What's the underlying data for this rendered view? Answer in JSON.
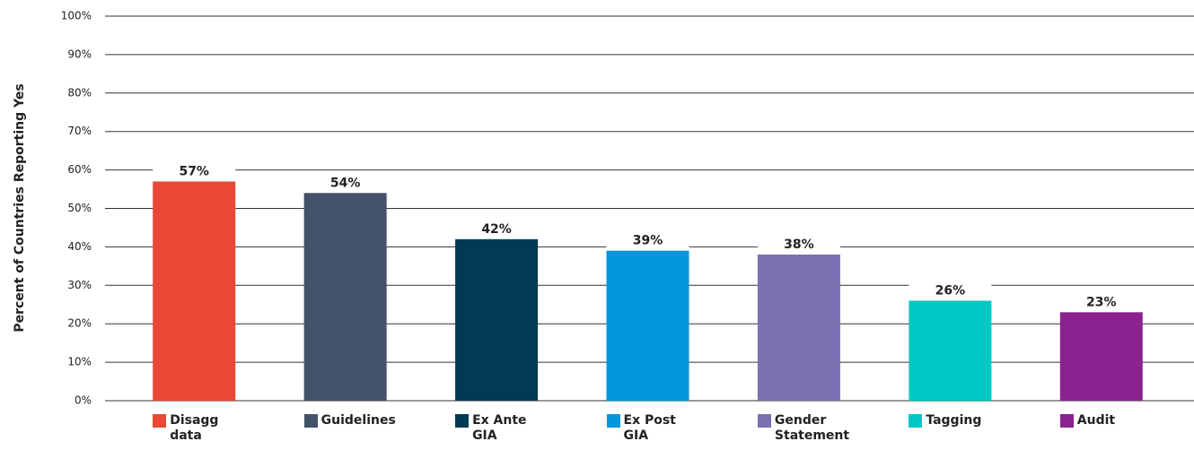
{
  "chart_data": {
    "type": "bar",
    "y_label": "Percent of Countries Reporting Yes",
    "categories": [
      "Disagg data",
      "Guidelines",
      "Ex Ante GIA",
      "Ex Post GIA",
      "Gender Statement",
      "Tagging",
      "Audit"
    ],
    "values": [
      57,
      54,
      42,
      39,
      38,
      26,
      23
    ],
    "value_labels": [
      "57%",
      "54%",
      "42%",
      "39%",
      "38%",
      "26%",
      "23%"
    ],
    "colors": [
      "#e84834",
      "#435268",
      "#013a54",
      "#0098da",
      "#7a70b2",
      "#00c7c6",
      "#8a2290"
    ],
    "ylim": [
      0,
      100
    ],
    "yticks": [
      {
        "value": 0,
        "label": "0%"
      },
      {
        "value": 10,
        "label": "10%"
      },
      {
        "value": 20,
        "label": "20%"
      },
      {
        "value": 30,
        "label": "30%"
      },
      {
        "value": 40,
        "label": "40%"
      },
      {
        "value": 50,
        "label": "50%"
      },
      {
        "value": 60,
        "label": "60%"
      },
      {
        "value": 70,
        "label": "70%"
      },
      {
        "value": 80,
        "label": "80%"
      },
      {
        "value": 90,
        "label": "90%"
      },
      {
        "value": 100,
        "label": "100%"
      }
    ],
    "grid": true
  }
}
